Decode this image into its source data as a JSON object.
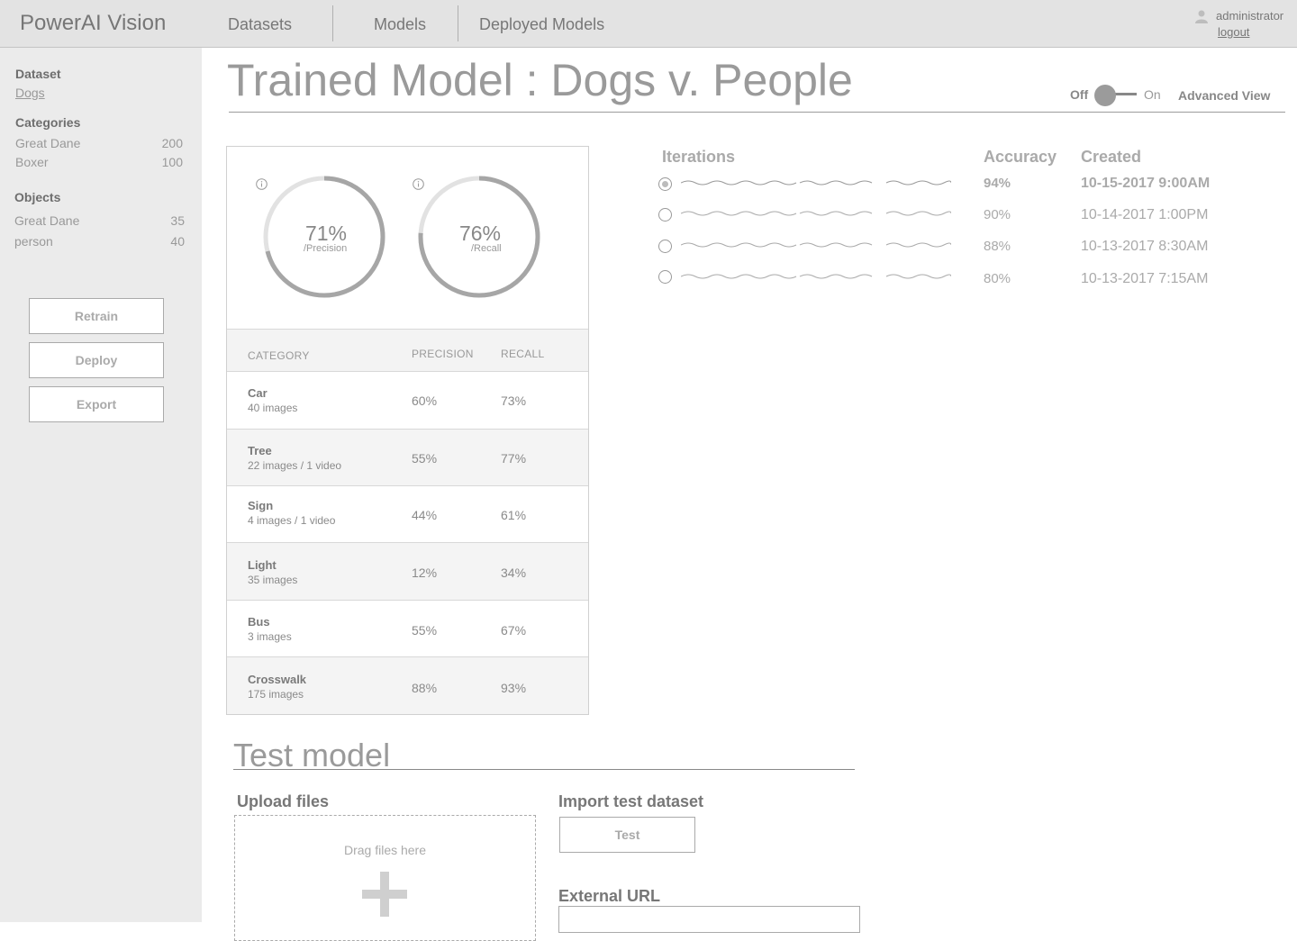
{
  "header": {
    "brand": "PowerAI Vision",
    "nav": [
      {
        "label": "Datasets"
      },
      {
        "label": "Models"
      },
      {
        "label": "Deployed Models"
      }
    ],
    "user": {
      "name": "administrator",
      "logout_label": "logout",
      "icon": "user-icon"
    }
  },
  "sidebar": {
    "dataset_heading": "Dataset",
    "dataset_link": "Dogs",
    "categories_heading": "Categories",
    "categories": [
      {
        "name": "Great Dane",
        "count": "200"
      },
      {
        "name": "Boxer",
        "count": "100"
      }
    ],
    "objects_heading": "Objects",
    "objects": [
      {
        "name": "Great Dane",
        "count": "35"
      },
      {
        "name": "person",
        "count": "40"
      }
    ],
    "buttons": {
      "retrain": "Retrain",
      "deploy": "Deploy",
      "export": "Export"
    }
  },
  "page": {
    "title": "Trained Model : Dogs v. People",
    "toggle": {
      "off_label": "Off",
      "on_label": "On",
      "state": "off"
    },
    "advanced_view_label": "Advanced View"
  },
  "metrics": {
    "precision": {
      "value": "71%",
      "label": "/Precision",
      "fraction": 0.71
    },
    "recall": {
      "value": "76%",
      "label": "/Recall",
      "fraction": 0.76
    },
    "table": {
      "headers": {
        "category": "CATEGORY",
        "precision": "PRECISION",
        "recall": "RECALL"
      },
      "rows": [
        {
          "name": "Car",
          "sub": "40 images",
          "precision": "60%",
          "recall": "73%"
        },
        {
          "name": "Tree",
          "sub": "22 images / 1 video",
          "precision": "55%",
          "recall": "77%"
        },
        {
          "name": "Sign",
          "sub": "4 images / 1 video",
          "precision": "44%",
          "recall": "61%"
        },
        {
          "name": "Light",
          "sub": "35 images",
          "precision": "12%",
          "recall": "34%"
        },
        {
          "name": "Bus",
          "sub": "3 images",
          "precision": "55%",
          "recall": "67%"
        },
        {
          "name": "Crosswalk",
          "sub": "175 images",
          "precision": "88%",
          "recall": "93%"
        }
      ]
    }
  },
  "iterations": {
    "headers": {
      "iterations": "Iterations",
      "accuracy": "Accuracy",
      "created": "Created"
    },
    "rows": [
      {
        "accuracy": "94%",
        "created": "10-15-2017 9:00AM",
        "selected": true
      },
      {
        "accuracy": "90%",
        "created": "10-14-2017 1:00PM",
        "selected": false
      },
      {
        "accuracy": "88%",
        "created": "10-13-2017 8:30AM",
        "selected": false
      },
      {
        "accuracy": "80%",
        "created": "10-13-2017 7:15AM",
        "selected": false
      }
    ]
  },
  "test_model": {
    "title": "Test model",
    "upload_heading": "Upload files",
    "drop_text": "Drag files here",
    "import_heading": "Import test dataset",
    "test_button": "Test",
    "external_url_heading": "External URL",
    "external_url_value": ""
  }
}
